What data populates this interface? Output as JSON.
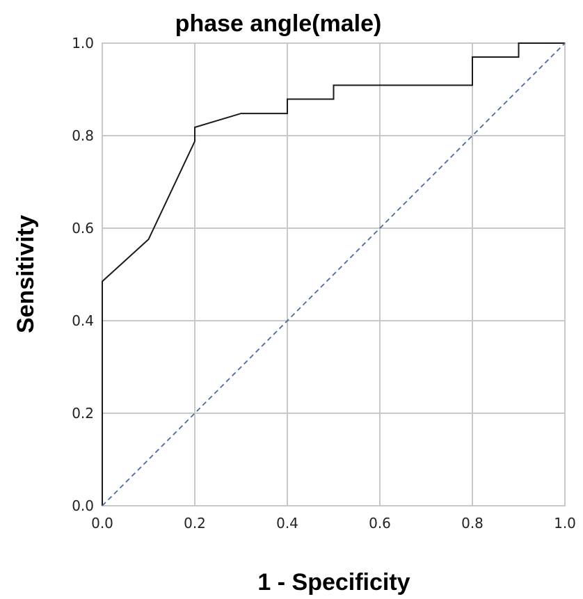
{
  "chart_data": {
    "type": "line",
    "title": "phase angle(male)",
    "xlabel": "1 - Specificity",
    "ylabel": "Sensitivity",
    "xlim": [
      0,
      1
    ],
    "ylim": [
      0,
      1
    ],
    "xticks": [
      "0.0",
      "0.2",
      "0.4",
      "0.6",
      "0.8",
      "1.0"
    ],
    "yticks": [
      "0.0",
      "0.2",
      "0.4",
      "0.6",
      "0.8",
      "1.0"
    ],
    "grid": true,
    "series": [
      {
        "style": "solid",
        "color": "#1a1a1a",
        "x": [
          0.0,
          0.0,
          0.1,
          0.2,
          0.2,
          0.3,
          0.4,
          0.4,
          0.5,
          0.5,
          0.8,
          0.8,
          0.9,
          0.9,
          1.0
        ],
        "y": [
          0.0,
          0.485,
          0.576,
          0.788,
          0.818,
          0.848,
          0.848,
          0.879,
          0.879,
          0.909,
          0.909,
          0.97,
          0.97,
          1.0,
          1.0
        ]
      },
      {
        "style": "dashed",
        "color": "#4a6aa8",
        "x": [
          0.0,
          1.0
        ],
        "y": [
          0.0,
          1.0
        ]
      }
    ]
  }
}
